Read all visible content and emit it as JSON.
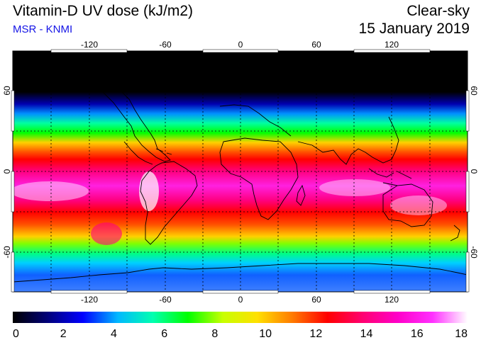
{
  "header": {
    "title": "Vitamin-D UV dose (kJ/m2)",
    "subtitle": "MSR - KNMI",
    "condition": "Clear-sky",
    "date": "15 January 2019"
  },
  "map": {
    "lon_ticks": [
      "-120",
      "-60",
      "0",
      "60",
      "120"
    ],
    "lat_ticks_left": [
      "60",
      "0",
      "-60"
    ],
    "lat_ticks_right": [
      "60",
      "0",
      "-60"
    ]
  },
  "colorbar": {
    "labels": [
      "0",
      "2",
      "4",
      "6",
      "8",
      "10",
      "12",
      "14",
      "16",
      "18"
    ],
    "colors": [
      "#000000",
      "#00007a",
      "#0000ff",
      "#00b8ff",
      "#00ffb0",
      "#00ff00",
      "#c8ff00",
      "#ffe000",
      "#ff7a00",
      "#ff0000",
      "#ff0070",
      "#ff00c8",
      "#ff30ff",
      "#ffffff"
    ]
  }
}
